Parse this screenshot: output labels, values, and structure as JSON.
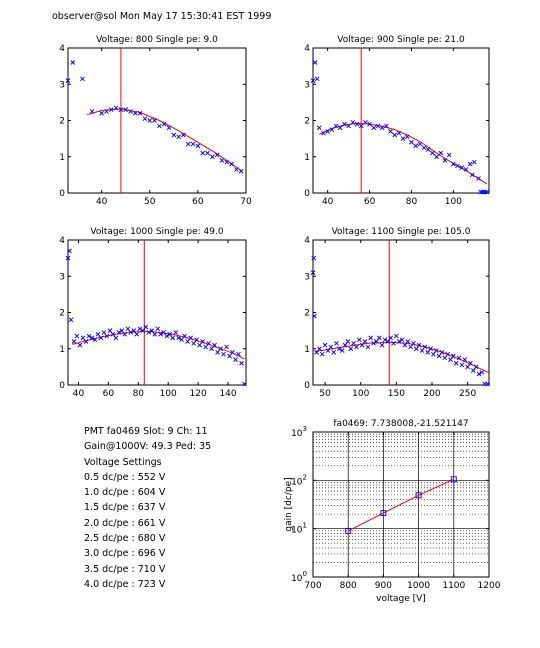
{
  "header": "observer@sol  Mon May 17 15:30:41 EST 1999",
  "info": {
    "pmt_line": "PMT fa0469 Slot: 9 Ch: 11",
    "gain_line": "Gain@1000V: 49.3 Ped: 35",
    "settings_title": "Voltage Settings",
    "settings": [
      "0.5 dc/pe : 552 V",
      "1.0 dc/pe : 604 V",
      "1.5 dc/pe : 637 V",
      "2.0 dc/pe : 661 V",
      "2.5 dc/pe : 680 V",
      "3.0 dc/pe : 696 V",
      "3.5 dc/pe : 710 V",
      "4.0 dc/pe : 723 V"
    ]
  },
  "chart_data": [
    {
      "type": "scatter",
      "title": "Voltage: 800 Single pe: 9.0",
      "xlim": [
        33,
        70
      ],
      "ylim": [
        0,
        4
      ],
      "xticks": [
        40,
        50,
        60,
        70
      ],
      "yticks": [
        0,
        1,
        2,
        3,
        4
      ],
      "marker_color": "#0000ff",
      "fit_color": "#ff0000",
      "vline": 44,
      "fit": [
        [
          37,
          2.16
        ],
        [
          40,
          2.28
        ],
        [
          44,
          2.32
        ],
        [
          48,
          2.22
        ],
        [
          52,
          2.0
        ],
        [
          56,
          1.72
        ],
        [
          60,
          1.4
        ],
        [
          64,
          1.08
        ],
        [
          69,
          0.62
        ]
      ],
      "points": [
        [
          33,
          3.1
        ],
        [
          34,
          3.6
        ],
        [
          36,
          3.15
        ],
        [
          38,
          2.25
        ],
        [
          40,
          2.2
        ],
        [
          41,
          2.25
        ],
        [
          42,
          2.3
        ],
        [
          43,
          2.35
        ],
        [
          44,
          2.3
        ],
        [
          45,
          2.3
        ],
        [
          46,
          2.25
        ],
        [
          47,
          2.2
        ],
        [
          48,
          2.2
        ],
        [
          49,
          2.05
        ],
        [
          50,
          2.0
        ],
        [
          51,
          2.0
        ],
        [
          52,
          1.85
        ],
        [
          53,
          1.9
        ],
        [
          54,
          1.8
        ],
        [
          55,
          1.6
        ],
        [
          56,
          1.55
        ],
        [
          57,
          1.6
        ],
        [
          58,
          1.35
        ],
        [
          59,
          1.35
        ],
        [
          60,
          1.3
        ],
        [
          61,
          1.1
        ],
        [
          62,
          1.1
        ],
        [
          63,
          1.0
        ],
        [
          64,
          1.05
        ],
        [
          65,
          0.9
        ],
        [
          66,
          0.85
        ],
        [
          67,
          0.8
        ],
        [
          68,
          0.65
        ],
        [
          69,
          0.6
        ]
      ]
    },
    {
      "type": "scatter",
      "title": "Voltage: 900 Single pe: 21.0",
      "xlim": [
        33,
        117
      ],
      "ylim": [
        0,
        4
      ],
      "xticks": [
        40,
        60,
        80,
        100
      ],
      "yticks": [
        0,
        1,
        2,
        3,
        4
      ],
      "marker_color": "#0000ff",
      "fit_color": "#ff0000",
      "vline": 56,
      "fit": [
        [
          36,
          1.62
        ],
        [
          42,
          1.78
        ],
        [
          48,
          1.88
        ],
        [
          54,
          1.92
        ],
        [
          60,
          1.9
        ],
        [
          66,
          1.84
        ],
        [
          72,
          1.75
        ],
        [
          78,
          1.6
        ],
        [
          84,
          1.42
        ],
        [
          90,
          1.18
        ],
        [
          96,
          0.95
        ],
        [
          102,
          0.75
        ],
        [
          108,
          0.55
        ],
        [
          116,
          0.25
        ]
      ],
      "points": [
        [
          33,
          3.1
        ],
        [
          34,
          3.6
        ],
        [
          35,
          3.15
        ],
        [
          36,
          1.8
        ],
        [
          38,
          1.65
        ],
        [
          40,
          1.7
        ],
        [
          42,
          1.75
        ],
        [
          44,
          1.85
        ],
        [
          46,
          1.8
        ],
        [
          48,
          1.9
        ],
        [
          50,
          1.85
        ],
        [
          52,
          1.95
        ],
        [
          54,
          1.9
        ],
        [
          56,
          1.85
        ],
        [
          58,
          1.95
        ],
        [
          60,
          1.9
        ],
        [
          62,
          1.8
        ],
        [
          64,
          1.85
        ],
        [
          66,
          1.8
        ],
        [
          68,
          1.85
        ],
        [
          70,
          1.7
        ],
        [
          72,
          1.6
        ],
        [
          74,
          1.65
        ],
        [
          76,
          1.5
        ],
        [
          78,
          1.55
        ],
        [
          80,
          1.4
        ],
        [
          82,
          1.3
        ],
        [
          84,
          1.35
        ],
        [
          86,
          1.25
        ],
        [
          88,
          1.2
        ],
        [
          90,
          1.1
        ],
        [
          92,
          1.0
        ],
        [
          94,
          1.1
        ],
        [
          96,
          0.9
        ],
        [
          98,
          1.05
        ],
        [
          100,
          0.8
        ],
        [
          102,
          0.75
        ],
        [
          104,
          0.7
        ],
        [
          106,
          0.65
        ],
        [
          108,
          0.8
        ],
        [
          109,
          0.5
        ],
        [
          110,
          0.85
        ],
        [
          112,
          0.4
        ],
        [
          113,
          0.0
        ],
        [
          114,
          0.0
        ],
        [
          115,
          0.0
        ],
        [
          116,
          0.0
        ]
      ]
    },
    {
      "type": "scatter",
      "title": "Voltage: 1000 Single pe: 49.0",
      "xlim": [
        33,
        152
      ],
      "ylim": [
        0,
        4
      ],
      "xticks": [
        40,
        60,
        80,
        100,
        120,
        140
      ],
      "yticks": [
        0,
        1,
        2,
        3,
        4
      ],
      "marker_color": "#0000ff",
      "fit_color": "#ff0000",
      "vline": 84,
      "fit": [
        [
          36,
          1.12
        ],
        [
          45,
          1.22
        ],
        [
          55,
          1.32
        ],
        [
          65,
          1.4
        ],
        [
          75,
          1.46
        ],
        [
          84,
          1.48
        ],
        [
          95,
          1.45
        ],
        [
          105,
          1.38
        ],
        [
          115,
          1.28
        ],
        [
          125,
          1.15
        ],
        [
          135,
          1.0
        ],
        [
          145,
          0.85
        ],
        [
          151,
          0.72
        ]
      ],
      "points": [
        [
          33,
          3.5
        ],
        [
          34,
          3.7
        ],
        [
          35,
          1.8
        ],
        [
          37,
          1.2
        ],
        [
          39,
          1.35
        ],
        [
          41,
          1.1
        ],
        [
          43,
          1.3
        ],
        [
          45,
          1.2
        ],
        [
          47,
          1.35
        ],
        [
          49,
          1.3
        ],
        [
          51,
          1.25
        ],
        [
          53,
          1.4
        ],
        [
          55,
          1.3
        ],
        [
          57,
          1.45
        ],
        [
          59,
          1.35
        ],
        [
          61,
          1.5
        ],
        [
          63,
          1.4
        ],
        [
          65,
          1.3
        ],
        [
          67,
          1.45
        ],
        [
          69,
          1.5
        ],
        [
          71,
          1.4
        ],
        [
          73,
          1.55
        ],
        [
          75,
          1.45
        ],
        [
          77,
          1.5
        ],
        [
          79,
          1.4
        ],
        [
          81,
          1.55
        ],
        [
          83,
          1.5
        ],
        [
          85,
          1.6
        ],
        [
          87,
          1.45
        ],
        [
          89,
          1.5
        ],
        [
          91,
          1.4
        ],
        [
          93,
          1.55
        ],
        [
          95,
          1.4
        ],
        [
          97,
          1.45
        ],
        [
          99,
          1.35
        ],
        [
          101,
          1.4
        ],
        [
          103,
          1.3
        ],
        [
          105,
          1.45
        ],
        [
          107,
          1.3
        ],
        [
          109,
          1.25
        ],
        [
          111,
          1.35
        ],
        [
          113,
          1.2
        ],
        [
          115,
          1.3
        ],
        [
          117,
          1.15
        ],
        [
          119,
          1.25
        ],
        [
          121,
          1.1
        ],
        [
          123,
          1.2
        ],
        [
          125,
          1.05
        ],
        [
          127,
          1.15
        ],
        [
          129,
          1.0
        ],
        [
          131,
          1.1
        ],
        [
          133,
          0.9
        ],
        [
          135,
          1.0
        ],
        [
          137,
          0.85
        ],
        [
          139,
          1.05
        ],
        [
          141,
          0.8
        ],
        [
          143,
          0.9
        ],
        [
          145,
          0.7
        ],
        [
          147,
          0.85
        ],
        [
          149,
          0.6
        ],
        [
          151,
          0.0
        ]
      ]
    },
    {
      "type": "scatter",
      "title": "Voltage: 1100 Single pe: 105.0",
      "xlim": [
        33,
        280
      ],
      "ylim": [
        0,
        4
      ],
      "xticks": [
        50,
        100,
        150,
        200,
        250
      ],
      "yticks": [
        0,
        1,
        2,
        3,
        4
      ],
      "marker_color": "#0000ff",
      "fit_color": "#ff0000",
      "vline": 140,
      "fit": [
        [
          36,
          0.92
        ],
        [
          60,
          1.0
        ],
        [
          85,
          1.08
        ],
        [
          110,
          1.15
        ],
        [
          140,
          1.18
        ],
        [
          165,
          1.15
        ],
        [
          190,
          1.05
        ],
        [
          215,
          0.9
        ],
        [
          240,
          0.7
        ],
        [
          260,
          0.52
        ],
        [
          279,
          0.35
        ]
      ],
      "points": [
        [
          33,
          3.1
        ],
        [
          34,
          3.5
        ],
        [
          35,
          1.9
        ],
        [
          38,
          0.9
        ],
        [
          42,
          1.0
        ],
        [
          46,
          0.85
        ],
        [
          50,
          1.1
        ],
        [
          54,
          0.95
        ],
        [
          58,
          1.05
        ],
        [
          62,
          0.9
        ],
        [
          66,
          1.15
        ],
        [
          70,
          1.0
        ],
        [
          74,
          0.95
        ],
        [
          78,
          1.1
        ],
        [
          82,
          1.2
        ],
        [
          86,
          1.0
        ],
        [
          90,
          1.15
        ],
        [
          94,
          1.05
        ],
        [
          98,
          1.25
        ],
        [
          102,
          1.1
        ],
        [
          106,
          1.2
        ],
        [
          110,
          1.05
        ],
        [
          114,
          1.3
        ],
        [
          118,
          1.15
        ],
        [
          122,
          1.2
        ],
        [
          126,
          1.3
        ],
        [
          130,
          1.1
        ],
        [
          134,
          1.25
        ],
        [
          138,
          1.2
        ],
        [
          142,
          1.3
        ],
        [
          146,
          1.15
        ],
        [
          150,
          1.35
        ],
        [
          154,
          1.2
        ],
        [
          158,
          1.25
        ],
        [
          162,
          1.1
        ],
        [
          166,
          1.2
        ],
        [
          170,
          1.05
        ],
        [
          174,
          1.15
        ],
        [
          178,
          1.0
        ],
        [
          182,
          1.1
        ],
        [
          186,
          0.95
        ],
        [
          190,
          1.05
        ],
        [
          194,
          0.9
        ],
        [
          198,
          1.0
        ],
        [
          202,
          0.85
        ],
        [
          206,
          0.95
        ],
        [
          210,
          0.8
        ],
        [
          214,
          0.9
        ],
        [
          218,
          0.75
        ],
        [
          222,
          0.85
        ],
        [
          226,
          0.7
        ],
        [
          230,
          0.8
        ],
        [
          234,
          0.6
        ],
        [
          238,
          0.75
        ],
        [
          242,
          0.55
        ],
        [
          246,
          0.7
        ],
        [
          250,
          0.5
        ],
        [
          254,
          0.6
        ],
        [
          258,
          0.4
        ],
        [
          262,
          0.5
        ],
        [
          266,
          0.3
        ],
        [
          270,
          0.35
        ],
        [
          274,
          0.0
        ],
        [
          278,
          0.0
        ]
      ]
    },
    {
      "type": "line",
      "title": "fa0469: 7.738008,-21.521147",
      "xlabel": "voltage [V]",
      "ylabel": "gain [dc/pe]",
      "xlim": [
        700,
        1200
      ],
      "ylim": [
        1,
        1000
      ],
      "yscale": "log",
      "xticks": [
        700,
        800,
        900,
        1000,
        1100,
        1200
      ],
      "yticks": [
        1,
        10,
        100,
        1000
      ],
      "ytick_labels": [
        "10^0",
        "10^1",
        "10^2",
        "10^3"
      ],
      "grid": true,
      "line_color": "#ff0000",
      "marker_color": "#0000ff",
      "points": [
        [
          800,
          9.0
        ],
        [
          900,
          21.0
        ],
        [
          1000,
          49.0
        ],
        [
          1100,
          105.0
        ]
      ]
    }
  ]
}
